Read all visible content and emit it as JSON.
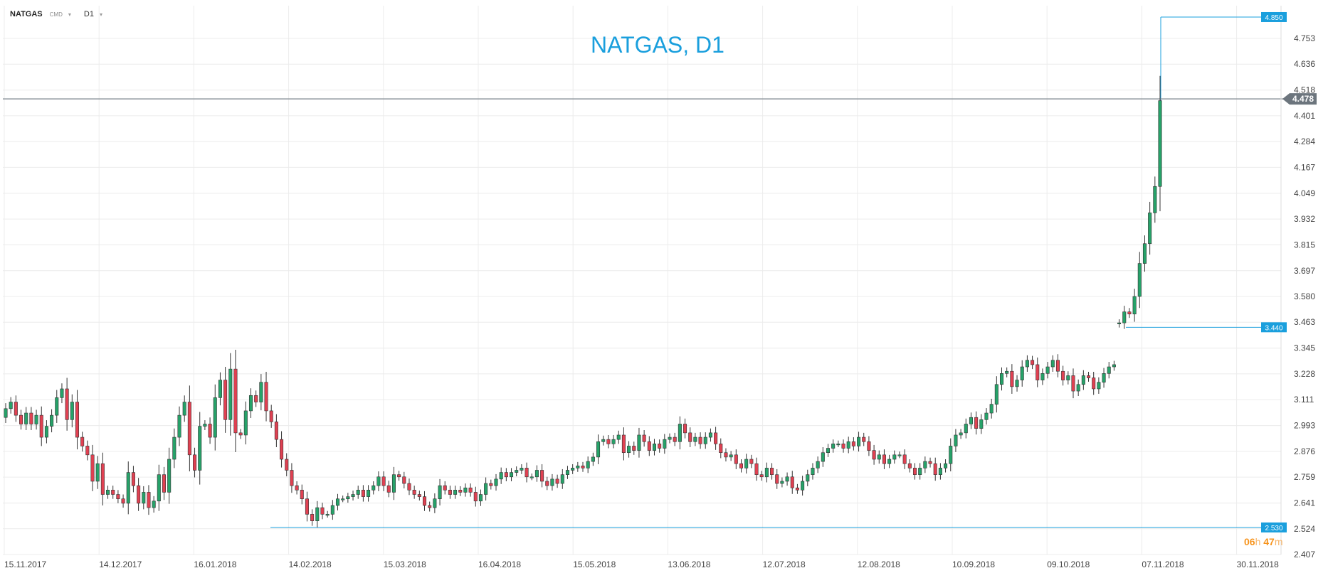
{
  "toolbar": {
    "symbol": "NATGAS",
    "instrument_type": "CMD",
    "timeframe": "D1"
  },
  "countdown": {
    "hours": "06",
    "hours_unit": "h",
    "minutes": "47",
    "minutes_unit": "m"
  },
  "colors": {
    "bull": "#26a269",
    "bear": "#e04152",
    "title": "#1a9fdd",
    "marker_line": "#1a9fdd",
    "price_line": "#8e969d",
    "grid": "#ececec"
  },
  "chart_data": {
    "type": "candlestick",
    "title": "NATGAS, D1",
    "ylim": [
      2.407,
      4.87
    ],
    "y_ticks": [
      "2.407",
      "2.524",
      "2.641",
      "2.759",
      "2.876",
      "2.993",
      "3.111",
      "3.228",
      "3.345",
      "3.463",
      "3.580",
      "3.697",
      "3.815",
      "3.932",
      "4.049",
      "4.167",
      "4.284",
      "4.401",
      "4.518",
      "4.636",
      "4.753"
    ],
    "x_ticks": [
      "15.11.2017",
      "14.12.2017",
      "16.01.2018",
      "14.02.2018",
      "15.03.2018",
      "16.04.2018",
      "15.05.2018",
      "13.06.2018",
      "12.07.2018",
      "12.08.2018",
      "10.09.2018",
      "09.10.2018",
      "07.11.2018",
      "30.11.2018"
    ],
    "current_price": "4.478",
    "markers": [
      {
        "label": "4.850",
        "value": 4.85
      },
      {
        "label": "3.440",
        "value": 3.44
      },
      {
        "label": "2.530",
        "value": 2.53
      }
    ],
    "close_series": [
      3.07,
      3.1,
      3.04,
      3.0,
      3.05,
      3.0,
      3.04,
      2.94,
      2.99,
      3.04,
      3.12,
      3.16,
      3.02,
      3.1,
      2.94,
      2.9,
      2.86,
      2.74,
      2.82,
      2.68,
      2.7,
      2.68,
      2.66,
      2.64,
      2.78,
      2.72,
      2.64,
      2.69,
      2.62,
      2.65,
      2.77,
      2.69,
      2.84,
      2.94,
      3.04,
      3.1,
      2.86,
      2.79,
      2.99,
      3.0,
      2.94,
      3.12,
      3.2,
      3.02,
      3.25,
      2.96,
      2.95,
      3.06,
      3.13,
      3.1,
      3.19,
      3.06,
      3.01,
      2.93,
      2.84,
      2.79,
      2.72,
      2.7,
      2.66,
      2.59,
      2.56,
      2.62,
      2.59,
      2.59,
      2.63,
      2.66,
      2.66,
      2.67,
      2.68,
      2.7,
      2.67,
      2.7,
      2.72,
      2.76,
      2.72,
      2.69,
      2.77,
      2.76,
      2.73,
      2.7,
      2.68,
      2.67,
      2.63,
      2.62,
      2.66,
      2.72,
      2.7,
      2.68,
      2.7,
      2.69,
      2.71,
      2.69,
      2.65,
      2.68,
      2.73,
      2.72,
      2.75,
      2.78,
      2.76,
      2.78,
      2.79,
      2.8,
      2.76,
      2.76,
      2.79,
      2.74,
      2.72,
      2.75,
      2.73,
      2.77,
      2.79,
      2.8,
      2.81,
      2.8,
      2.83,
      2.85,
      2.92,
      2.93,
      2.91,
      2.93,
      2.95,
      2.87,
      2.9,
      2.88,
      2.95,
      2.92,
      2.88,
      2.91,
      2.89,
      2.93,
      2.94,
      2.92,
      3.0,
      2.96,
      2.92,
      2.94,
      2.91,
      2.94,
      2.96,
      2.91,
      2.87,
      2.85,
      2.86,
      2.82,
      2.8,
      2.84,
      2.82,
      2.77,
      2.76,
      2.8,
      2.77,
      2.73,
      2.74,
      2.76,
      2.71,
      2.7,
      2.74,
      2.77,
      2.8,
      2.83,
      2.87,
      2.89,
      2.91,
      2.91,
      2.89,
      2.92,
      2.9,
      2.94,
      2.92,
      2.88,
      2.84,
      2.86,
      2.82,
      2.84,
      2.86,
      2.86,
      2.82,
      2.8,
      2.77,
      2.8,
      2.83,
      2.82,
      2.77,
      2.8,
      2.82,
      2.9,
      2.95,
      2.96,
      3.0,
      3.03,
      2.98,
      3.02,
      3.05,
      3.09,
      3.18,
      3.23,
      3.24,
      3.17,
      3.2,
      3.26,
      3.29,
      3.27,
      3.2,
      3.23,
      3.26,
      3.29,
      3.24,
      3.2,
      3.22,
      3.15,
      3.18,
      3.22,
      3.21,
      3.16,
      3.19,
      3.23,
      3.26,
      3.27,
      3.46,
      3.51,
      3.5,
      3.58,
      3.73,
      3.82,
      3.96,
      4.08,
      4.47
    ]
  }
}
